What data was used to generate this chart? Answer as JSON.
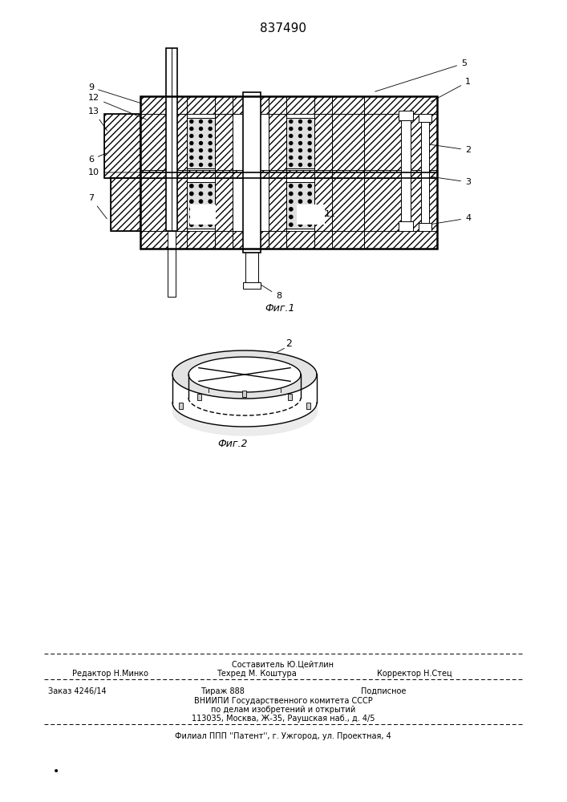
{
  "patent_number": "837490",
  "bg_color": "#ffffff",
  "line_color": "#000000",
  "fig1_caption": "Фиг.1",
  "fig2_caption": "Фиг.2",
  "footer_line1": "Составитель Ю.Цейтлин",
  "footer_line2_left": "Редактор Н.Минко",
  "footer_line2_mid": "Техред М. Коштура",
  "footer_line2_right": "Корректор Н.Стец",
  "footer_line3_left": "Заказ 4246/14",
  "footer_line3_mid": "Тираж 888",
  "footer_line3_right": "Подписное",
  "footer_line4": "ВНИИПИ Государственного комитета СССР",
  "footer_line5": "по делам изобретений и открытий",
  "footer_line6": "113035, Москва, Ж-35, Раушская наб., д. 4/5",
  "footer_line7": "Филиал ППП ''Патент'', г. Ужгород, ул. Проектная, 4"
}
